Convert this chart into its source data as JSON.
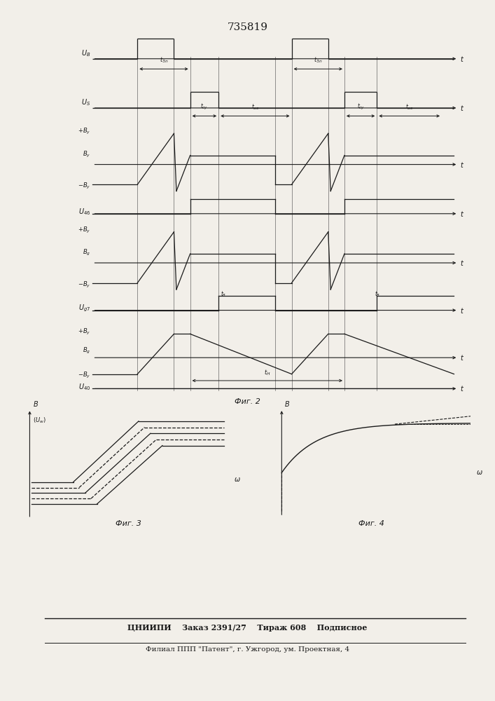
{
  "title": "735819",
  "fig2_label": "Фиг. 2",
  "fig3_label": "Фиг. 3",
  "fig4_label": "Фиг. 4",
  "footer_line1": "ЦНИИПИ    Заказ 2391/27    Тираж 608    Подписное",
  "footer_line2": "Филиал ППП \"Патент\", г. Ужгород, ум. Проектная, 4",
  "bg_color": "#f2efe9",
  "line_color": "#1a1a1a",
  "grid_color": "#444444"
}
